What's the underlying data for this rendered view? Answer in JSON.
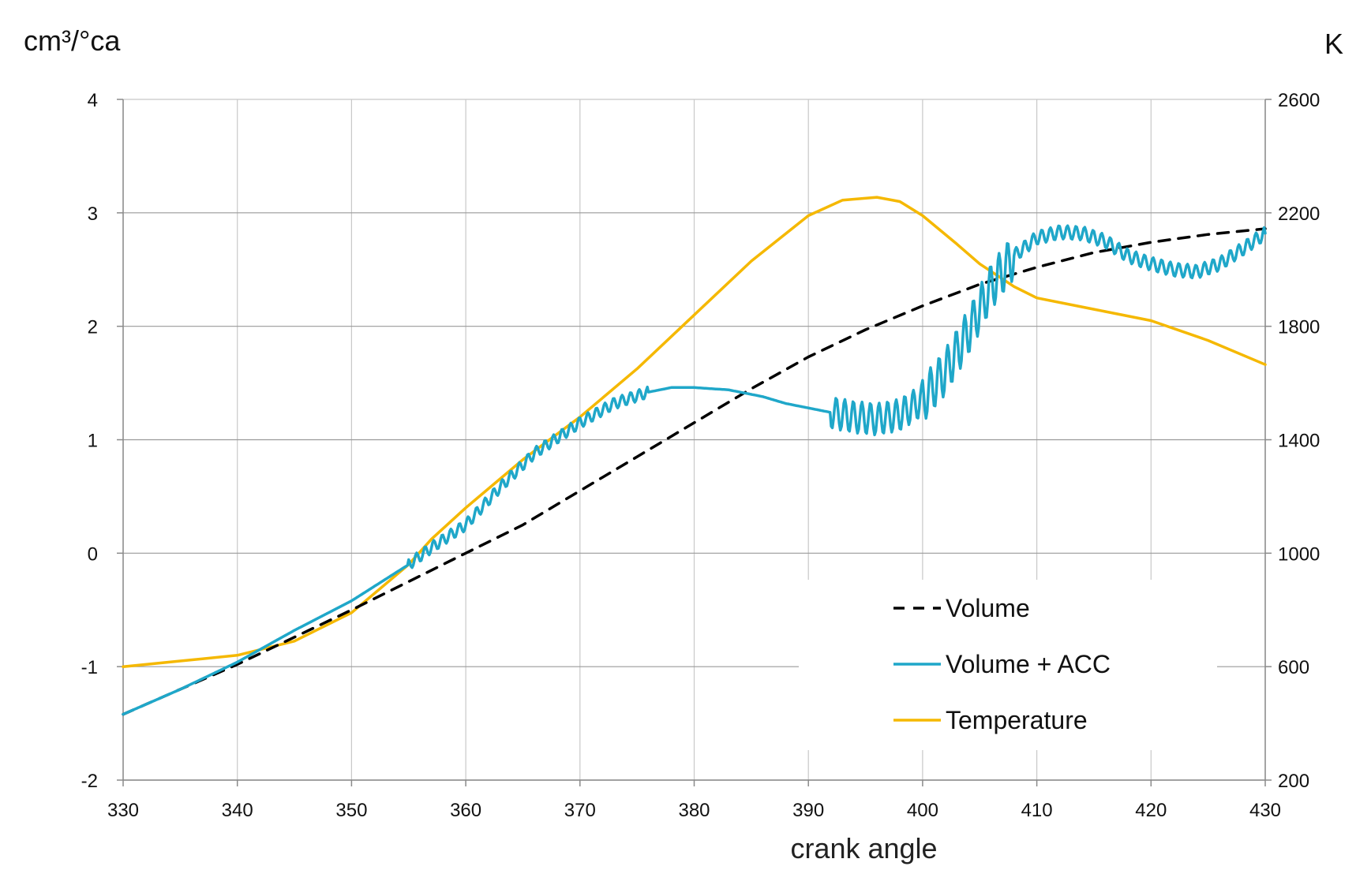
{
  "chart_data": {
    "type": "line",
    "title": "",
    "xlabel": "crank angle",
    "ylabel_left": "cm³/°ca",
    "ylabel_right": "K",
    "xlim": [
      330,
      430
    ],
    "ylim_left": [
      -2,
      4
    ],
    "ylim_right": [
      200,
      2600
    ],
    "xticks": [
      "330",
      "340",
      "350",
      "360",
      "370",
      "380",
      "390",
      "400",
      "410",
      "420",
      "430"
    ],
    "yticks_left": [
      "-2",
      "-1",
      "0",
      "1",
      "2",
      "3",
      "4"
    ],
    "yticks_right": [
      "200",
      "600",
      "1000",
      "1400",
      "1800",
      "2200",
      "2600"
    ],
    "grid": true,
    "legend_position": "bottom-right",
    "series": [
      {
        "name": "Volume",
        "axis": "left",
        "style": "dashed",
        "color": "#000000",
        "x": [
          330,
          335,
          340,
          345,
          350,
          355,
          360,
          365,
          370,
          375,
          380,
          385,
          390,
          395,
          400,
          405,
          410,
          415,
          420,
          425,
          430
        ],
        "y": [
          -1.42,
          -1.2,
          -0.98,
          -0.74,
          -0.5,
          -0.25,
          0.0,
          0.25,
          0.55,
          0.85,
          1.15,
          1.45,
          1.73,
          1.97,
          2.18,
          2.37,
          2.52,
          2.65,
          2.74,
          2.81,
          2.86
        ]
      },
      {
        "name": "Volume + ACC",
        "axis": "left",
        "style": "solid",
        "color": "#1FA7C9",
        "x": [
          330,
          335,
          340,
          345,
          350,
          355,
          357,
          360,
          363,
          366,
          370,
          373,
          376,
          378,
          380,
          383,
          386,
          388,
          390,
          392,
          394,
          396,
          398,
          400,
          402,
          404,
          406,
          408,
          410,
          412,
          414,
          416,
          418,
          420,
          422,
          424,
          426,
          428,
          430
        ],
        "y": [
          -1.42,
          -1.2,
          -0.96,
          -0.68,
          -0.42,
          -0.1,
          0.05,
          0.25,
          0.58,
          0.88,
          1.15,
          1.32,
          1.42,
          1.46,
          1.46,
          1.44,
          1.38,
          1.32,
          1.28,
          1.24,
          1.2,
          1.18,
          1.22,
          1.35,
          1.6,
          1.95,
          2.35,
          2.62,
          2.78,
          2.83,
          2.82,
          2.75,
          2.62,
          2.55,
          2.5,
          2.48,
          2.55,
          2.68,
          2.82
        ],
        "noise_segments": [
          [
            355,
            376,
            0.05
          ],
          [
            392,
            400,
            0.14
          ],
          [
            400,
            408,
            0.2
          ],
          [
            408,
            430,
            0.06
          ]
        ]
      },
      {
        "name": "Temperature",
        "axis": "right",
        "style": "solid",
        "color": "#F5B800",
        "x": [
          330,
          335,
          340,
          345,
          350,
          355,
          357,
          360,
          365,
          370,
          375,
          380,
          385,
          390,
          393,
          396,
          398,
          400,
          403,
          405,
          408,
          410,
          415,
          420,
          425,
          430
        ],
        "y": [
          600,
          620,
          640,
          690,
          790,
          960,
          1050,
          1160,
          1330,
          1480,
          1650,
          1840,
          2030,
          2190,
          2245,
          2255,
          2240,
          2190,
          2090,
          2020,
          1940,
          1900,
          1860,
          1820,
          1750,
          1665
        ]
      }
    ]
  }
}
